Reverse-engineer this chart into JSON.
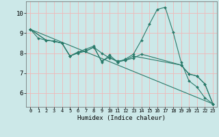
{
  "title": "",
  "xlabel": "Humidex (Indice chaleur)",
  "ylabel": "",
  "background_color": "#cce8e8",
  "grid_color": "#f0b8b8",
  "line_color": "#2a7a6a",
  "xlim": [
    -0.5,
    23.5
  ],
  "ylim": [
    5.3,
    10.6
  ],
  "yticks": [
    6,
    7,
    8,
    9,
    10
  ],
  "xticks": [
    0,
    1,
    2,
    3,
    4,
    5,
    6,
    7,
    8,
    9,
    10,
    11,
    12,
    13,
    14,
    15,
    16,
    17,
    18,
    19,
    20,
    21,
    22,
    23
  ],
  "lines": [
    {
      "x": [
        0,
        1,
        2,
        3,
        4,
        5,
        6,
        7,
        8,
        9,
        10,
        11,
        12,
        13,
        14,
        15,
        16,
        17,
        18,
        19,
        20,
        21,
        22,
        23
      ],
      "y": [
        9.2,
        8.75,
        8.65,
        8.6,
        8.5,
        7.85,
        8.05,
        8.2,
        8.35,
        7.55,
        7.9,
        7.55,
        7.7,
        7.95,
        8.65,
        9.45,
        10.2,
        10.3,
        9.05,
        7.55,
        6.6,
        6.3,
        5.75,
        5.45
      ]
    },
    {
      "x": [
        0,
        2,
        3,
        4,
        5,
        6,
        7,
        8,
        9,
        10,
        11,
        12,
        13,
        19,
        20,
        21,
        22,
        23
      ],
      "y": [
        9.2,
        8.65,
        8.6,
        8.5,
        7.85,
        8.0,
        8.1,
        8.3,
        8.0,
        7.75,
        7.6,
        7.65,
        7.85,
        7.4,
        6.95,
        6.85,
        6.45,
        5.45
      ]
    },
    {
      "x": [
        0,
        2,
        3,
        4,
        5,
        6,
        7,
        8,
        9,
        10,
        11,
        12,
        13,
        14,
        19,
        20,
        21,
        22,
        23
      ],
      "y": [
        9.2,
        8.65,
        8.6,
        8.5,
        7.85,
        8.05,
        8.1,
        8.3,
        7.6,
        7.8,
        7.55,
        7.65,
        7.75,
        7.95,
        7.4,
        6.95,
        6.85,
        6.45,
        5.45
      ]
    },
    {
      "x": [
        0,
        23
      ],
      "y": [
        9.2,
        5.45
      ]
    }
  ]
}
